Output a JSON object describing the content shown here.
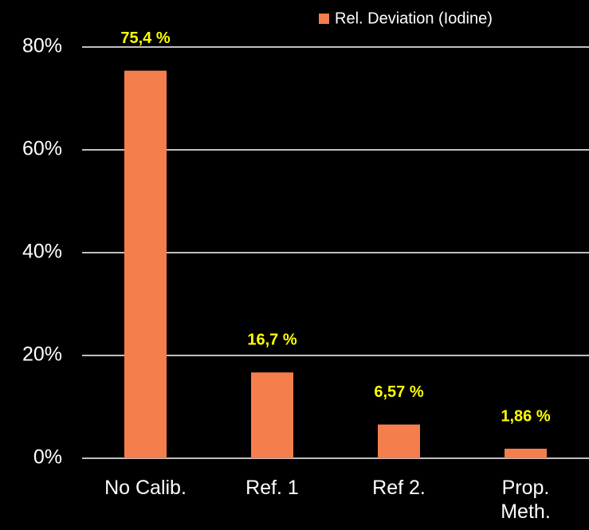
{
  "chart_data": {
    "type": "bar",
    "categories": [
      "No Calib.",
      "Ref. 1",
      "Ref 2.",
      "Prop.\nMeth."
    ],
    "series": [
      {
        "name": "Rel. Deviation (Iodine)",
        "color": "#f47e4c",
        "values": [
          75.4,
          16.7,
          6.57,
          1.86
        ],
        "value_labels": [
          "75,4 %",
          "16,7 %",
          "6,57 %",
          "1,86 %"
        ]
      }
    ],
    "ylim": [
      0,
      80
    ],
    "yticks": [
      {
        "value": 0,
        "label": "0%"
      },
      {
        "value": 20,
        "label": "20%"
      },
      {
        "value": 40,
        "label": "40%"
      },
      {
        "value": 60,
        "label": "60%"
      },
      {
        "value": 80,
        "label": "80%"
      }
    ],
    "grid": true,
    "legend": "top-right",
    "value_label_color": "#ffff00"
  }
}
